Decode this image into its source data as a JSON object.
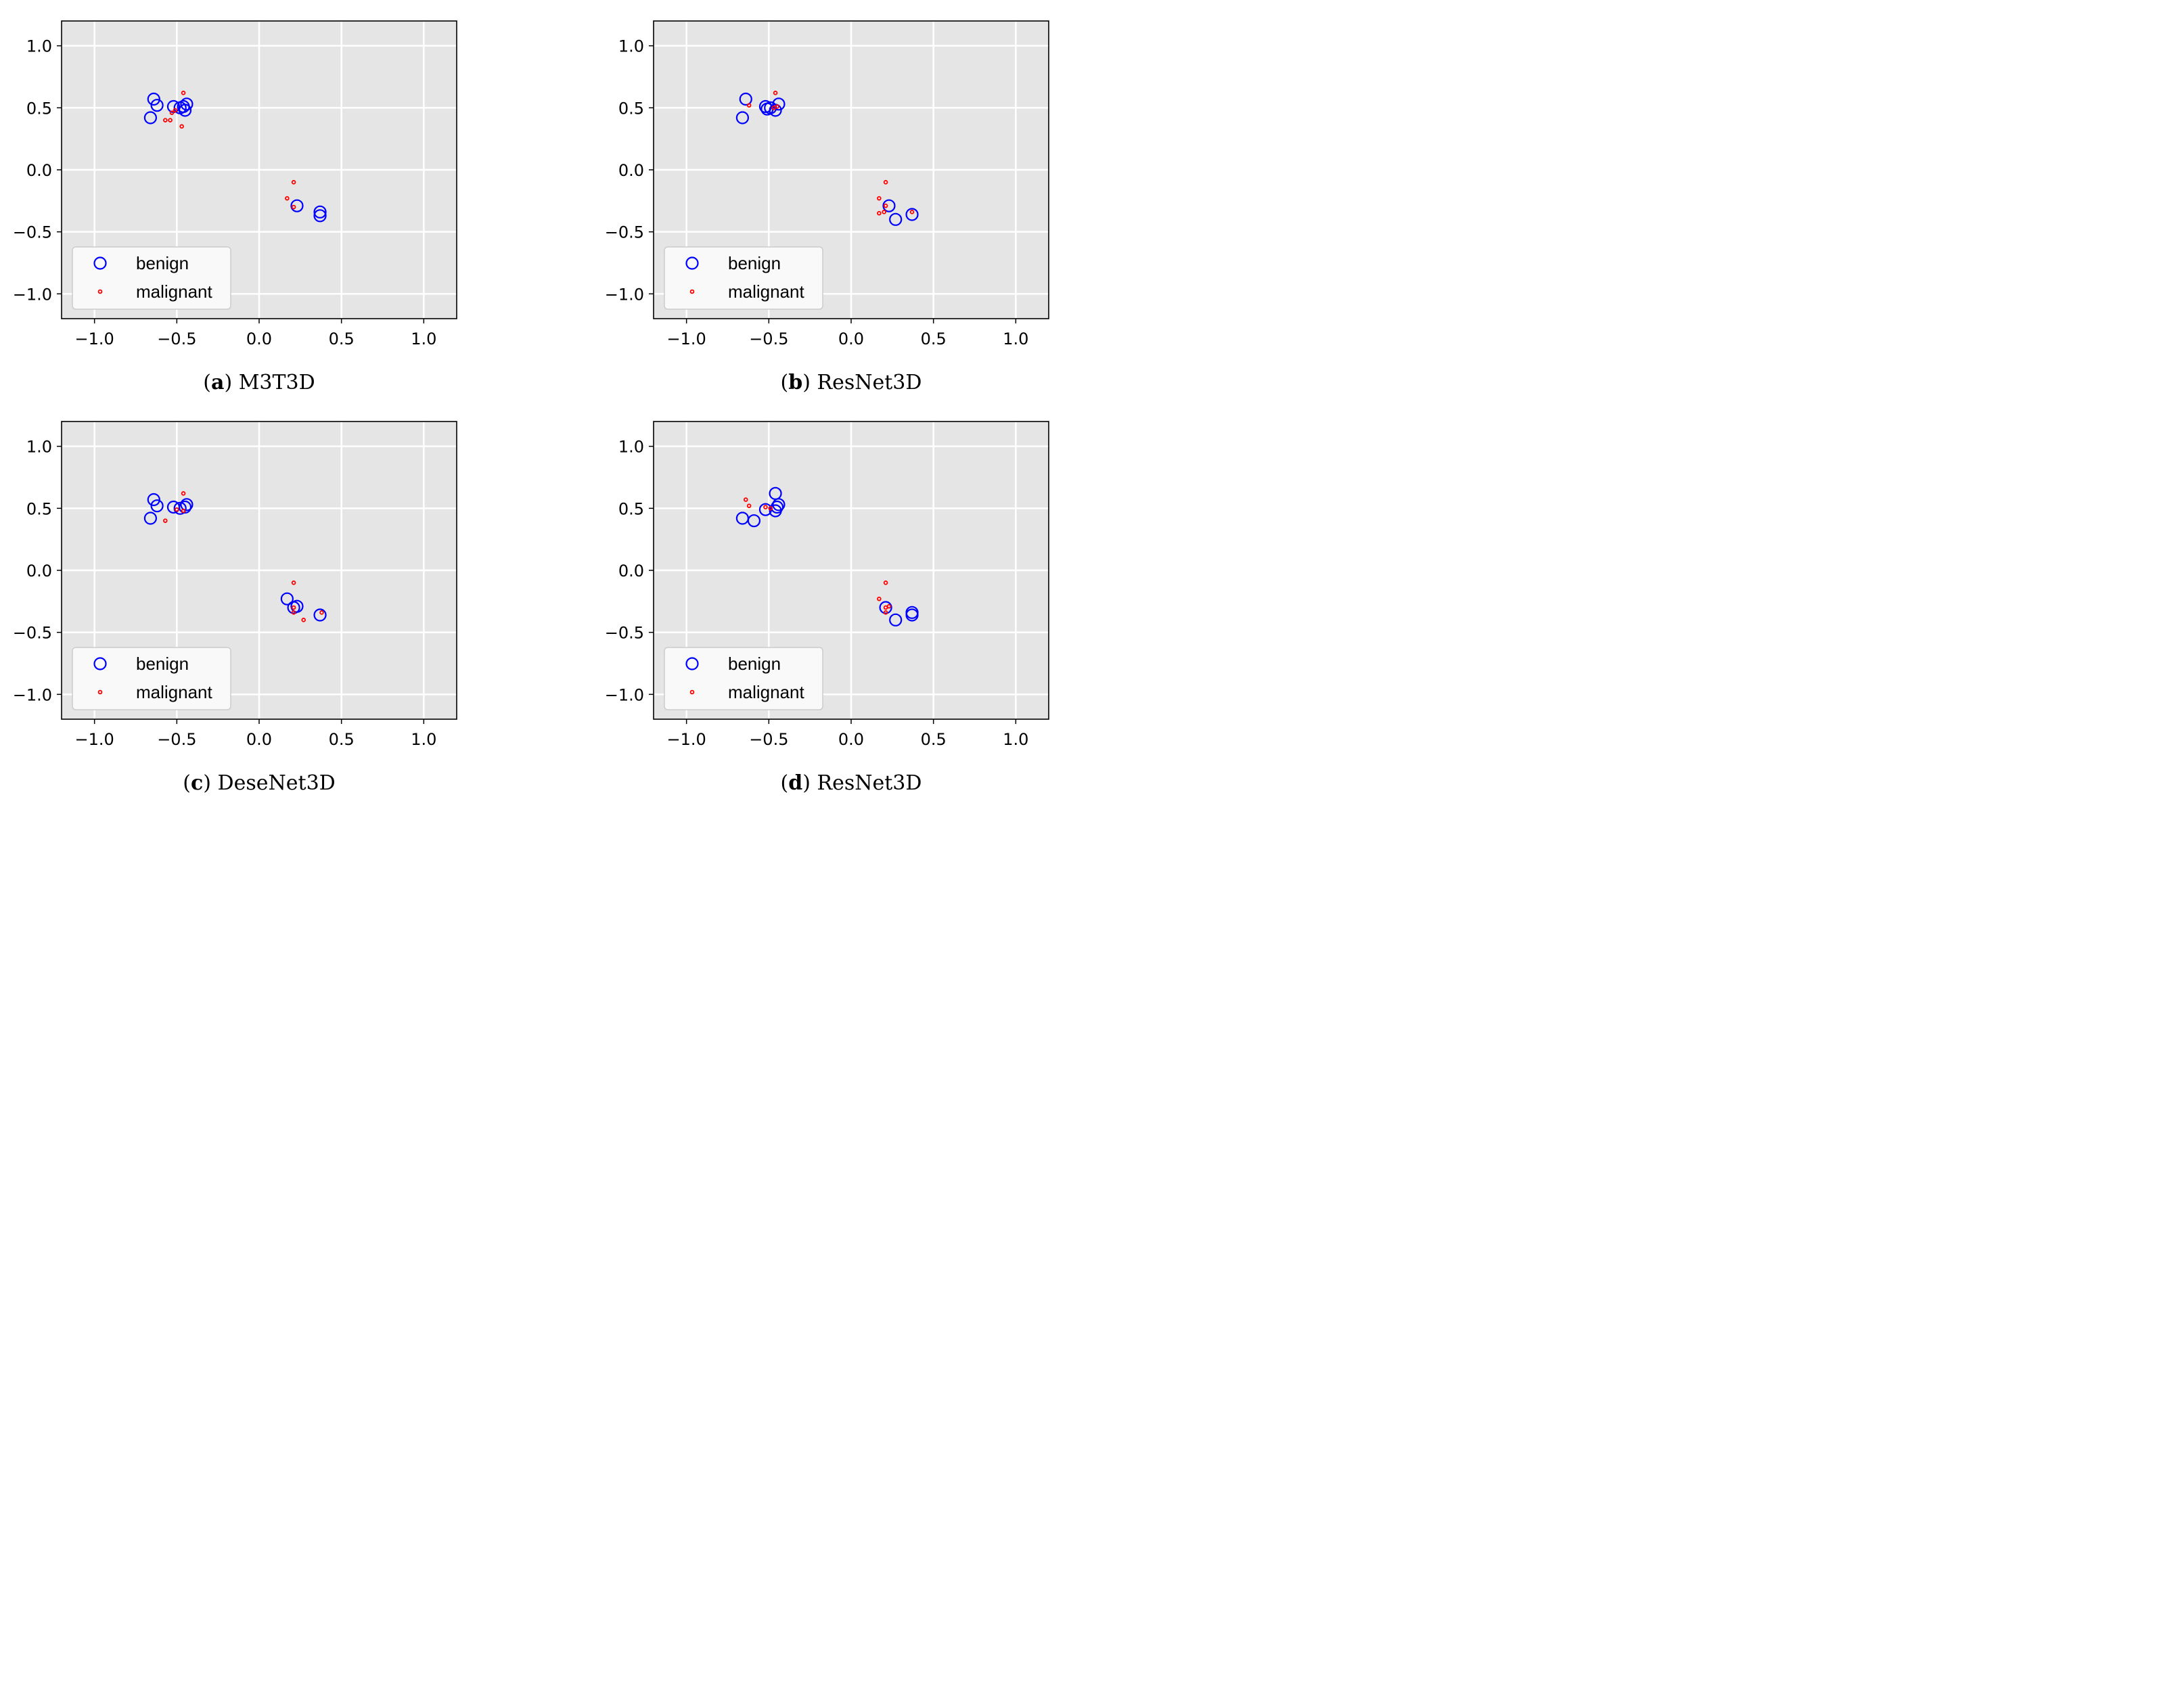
{
  "chart_data": [
    {
      "type": "scatter",
      "panel_label": "a",
      "caption": "M3T3D",
      "xlim": [
        -1.2,
        1.2
      ],
      "ylim": [
        -1.2,
        1.2
      ],
      "xticks": [
        -1.0,
        -0.5,
        0.0,
        0.5,
        1.0
      ],
      "yticks": [
        -1.0,
        -0.5,
        0.0,
        0.5,
        1.0
      ],
      "xtick_labels": [
        "−1.0",
        "−0.5",
        "0.0",
        "0.5",
        "1.0"
      ],
      "ytick_labels": [
        "−1.0",
        "−0.5",
        "0.0",
        "0.5",
        "1.0"
      ],
      "grid": true,
      "legend_position": "lower-left",
      "series": [
        {
          "name": "benign",
          "marker": "open-circle",
          "color": "#0000ff",
          "points": [
            [
              -0.64,
              0.57
            ],
            [
              -0.62,
              0.52
            ],
            [
              -0.66,
              0.42
            ],
            [
              -0.52,
              0.51
            ],
            [
              -0.48,
              0.5
            ],
            [
              -0.45,
              0.48
            ],
            [
              -0.44,
              0.53
            ],
            [
              -0.46,
              0.51
            ],
            [
              0.23,
              -0.29
            ],
            [
              0.37,
              -0.34
            ],
            [
              0.37,
              -0.37
            ]
          ]
        },
        {
          "name": "malignant",
          "marker": "small-dot",
          "color": "#ff0000",
          "points": [
            [
              -0.46,
              0.62
            ],
            [
              -0.51,
              0.48
            ],
            [
              -0.54,
              0.4
            ],
            [
              -0.57,
              0.4
            ],
            [
              -0.47,
              0.35
            ],
            [
              -0.53,
              0.46
            ],
            [
              0.21,
              -0.1
            ],
            [
              0.17,
              -0.23
            ],
            [
              0.21,
              -0.3
            ]
          ]
        }
      ]
    },
    {
      "type": "scatter",
      "panel_label": "b",
      "caption": "ResNet3D",
      "xlim": [
        -1.2,
        1.2
      ],
      "ylim": [
        -1.2,
        1.2
      ],
      "xticks": [
        -1.0,
        -0.5,
        0.0,
        0.5,
        1.0
      ],
      "yticks": [
        -1.0,
        -0.5,
        0.0,
        0.5,
        1.0
      ],
      "xtick_labels": [
        "−1.0",
        "−0.5",
        "0.0",
        "0.5",
        "1.0"
      ],
      "ytick_labels": [
        "−1.0",
        "−0.5",
        "0.0",
        "0.5",
        "1.0"
      ],
      "grid": true,
      "legend_position": "lower-left",
      "series": [
        {
          "name": "benign",
          "marker": "open-circle",
          "color": "#0000ff",
          "points": [
            [
              -0.64,
              0.57
            ],
            [
              -0.66,
              0.42
            ],
            [
              -0.52,
              0.51
            ],
            [
              -0.51,
              0.49
            ],
            [
              -0.49,
              0.5
            ],
            [
              -0.46,
              0.48
            ],
            [
              -0.44,
              0.53
            ],
            [
              0.23,
              -0.29
            ],
            [
              0.27,
              -0.4
            ],
            [
              0.37,
              -0.36
            ]
          ]
        },
        {
          "name": "malignant",
          "marker": "small-dot",
          "color": "#ff0000",
          "points": [
            [
              -0.46,
              0.62
            ],
            [
              -0.62,
              0.52
            ],
            [
              -0.47,
              0.5
            ],
            [
              -0.45,
              0.51
            ],
            [
              0.21,
              -0.1
            ],
            [
              0.17,
              -0.23
            ],
            [
              0.21,
              -0.29
            ],
            [
              0.17,
              -0.35
            ],
            [
              0.2,
              -0.34
            ],
            [
              0.37,
              -0.34
            ]
          ]
        }
      ]
    },
    {
      "type": "scatter",
      "panel_label": "c",
      "caption": "DeseNet3D",
      "xlim": [
        -1.2,
        1.2
      ],
      "ylim": [
        -1.2,
        1.2
      ],
      "xticks": [
        -1.0,
        -0.5,
        0.0,
        0.5,
        1.0
      ],
      "yticks": [
        -1.0,
        -0.5,
        0.0,
        0.5,
        1.0
      ],
      "xtick_labels": [
        "−1.0",
        "−0.5",
        "0.0",
        "0.5",
        "1.0"
      ],
      "ytick_labels": [
        "−1.0",
        "−0.5",
        "0.0",
        "0.5",
        "1.0"
      ],
      "grid": true,
      "legend_position": "lower-left",
      "series": [
        {
          "name": "benign",
          "marker": "open-circle",
          "color": "#0000ff",
          "points": [
            [
              -0.64,
              0.57
            ],
            [
              -0.62,
              0.52
            ],
            [
              -0.66,
              0.42
            ],
            [
              -0.52,
              0.51
            ],
            [
              -0.48,
              0.5
            ],
            [
              -0.45,
              0.51
            ],
            [
              -0.44,
              0.53
            ],
            [
              0.17,
              -0.23
            ],
            [
              0.21,
              -0.3
            ],
            [
              0.23,
              -0.29
            ],
            [
              0.37,
              -0.36
            ]
          ]
        },
        {
          "name": "malignant",
          "marker": "small-dot",
          "color": "#ff0000",
          "points": [
            [
              -0.46,
              0.62
            ],
            [
              -0.57,
              0.4
            ],
            [
              -0.5,
              0.49
            ],
            [
              -0.46,
              0.48
            ],
            [
              0.21,
              -0.1
            ],
            [
              0.21,
              -0.3
            ],
            [
              0.21,
              -0.34
            ],
            [
              0.27,
              -0.4
            ],
            [
              0.38,
              -0.34
            ]
          ]
        }
      ]
    },
    {
      "type": "scatter",
      "panel_label": "d",
      "caption": "ResNet3D",
      "xlim": [
        -1.2,
        1.2
      ],
      "ylim": [
        -1.2,
        1.2
      ],
      "xticks": [
        -1.0,
        -0.5,
        0.0,
        0.5,
        1.0
      ],
      "yticks": [
        -1.0,
        -0.5,
        0.0,
        0.5,
        1.0
      ],
      "xtick_labels": [
        "−1.0",
        "−0.5",
        "0.0",
        "0.5",
        "1.0"
      ],
      "ytick_labels": [
        "−1.0",
        "−0.5",
        "0.0",
        "0.5",
        "1.0"
      ],
      "grid": true,
      "legend_position": "lower-left",
      "series": [
        {
          "name": "benign",
          "marker": "open-circle",
          "color": "#0000ff",
          "points": [
            [
              -0.46,
              0.62
            ],
            [
              -0.66,
              0.42
            ],
            [
              -0.59,
              0.4
            ],
            [
              -0.52,
              0.49
            ],
            [
              -0.46,
              0.48
            ],
            [
              -0.45,
              0.51
            ],
            [
              -0.44,
              0.53
            ],
            [
              0.21,
              -0.3
            ],
            [
              0.27,
              -0.4
            ],
            [
              0.37,
              -0.34
            ],
            [
              0.37,
              -0.36
            ]
          ]
        },
        {
          "name": "malignant",
          "marker": "small-dot",
          "color": "#ff0000",
          "points": [
            [
              -0.64,
              0.57
            ],
            [
              -0.62,
              0.52
            ],
            [
              -0.52,
              0.51
            ],
            [
              -0.49,
              0.5
            ],
            [
              0.21,
              -0.1
            ],
            [
              0.17,
              -0.23
            ],
            [
              0.21,
              -0.3
            ],
            [
              0.23,
              -0.29
            ],
            [
              0.21,
              -0.34
            ]
          ]
        }
      ]
    }
  ],
  "colors": {
    "plot_background": "#e5e5e5",
    "grid": "#ffffff",
    "benign": "#0000ff",
    "malignant": "#ff0000"
  }
}
